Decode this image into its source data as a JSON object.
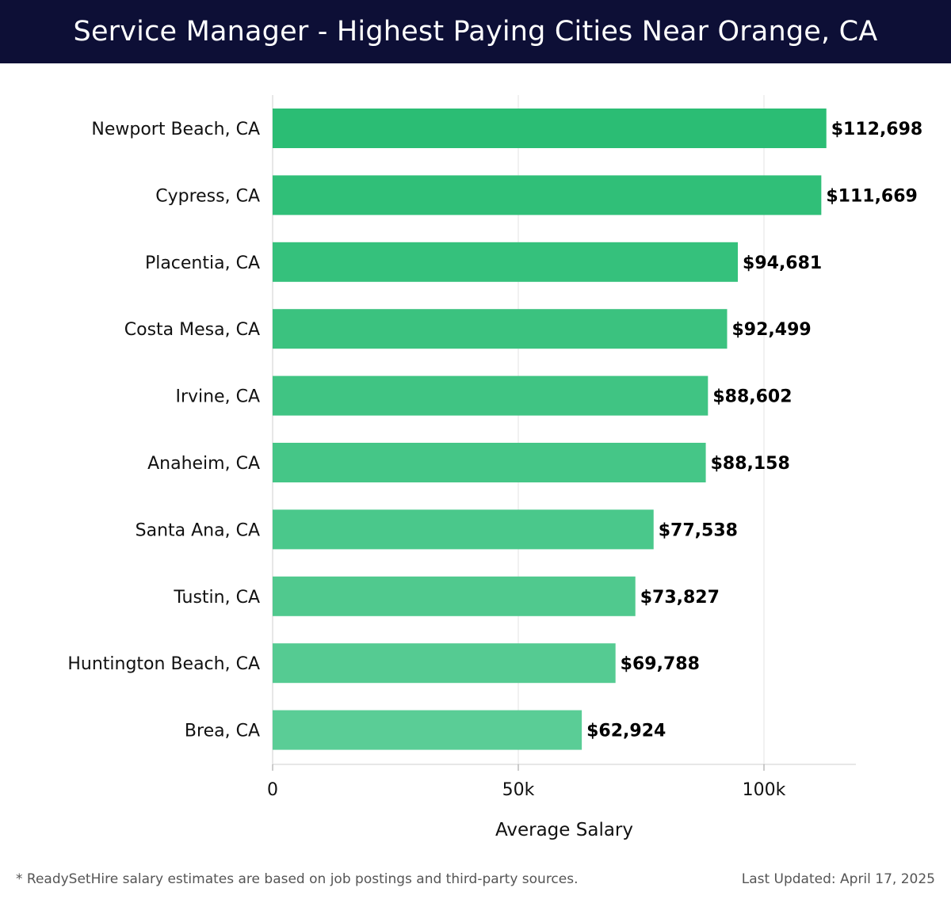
{
  "header": {
    "title": "Service Manager - Highest Paying Cities Near Orange, CA"
  },
  "chart_data": {
    "type": "bar",
    "orientation": "horizontal",
    "title": "Service Manager - Highest Paying Cities Near Orange, CA",
    "xlabel": "Average Salary",
    "ylabel": "",
    "xlim": [
      0,
      120000
    ],
    "xticks": [
      0,
      50000,
      100000
    ],
    "xtick_labels": [
      "0",
      "50k",
      "100k"
    ],
    "grid": true,
    "categories": [
      "Newport Beach, CA",
      "Cypress, CA",
      "Placentia, CA",
      "Costa Mesa, CA",
      "Irvine, CA",
      "Anaheim, CA",
      "Santa Ana, CA",
      "Tustin, CA",
      "Huntington Beach, CA",
      "Brea, CA"
    ],
    "values": [
      112698,
      111669,
      94681,
      92499,
      88602,
      88158,
      77538,
      73827,
      69788,
      62924
    ],
    "value_labels": [
      "$112,698",
      "$111,669",
      "$94,681",
      "$92,499",
      "$88,602",
      "$88,158",
      "$77,538",
      "$73,827",
      "$69,788",
      "$62,924"
    ],
    "bar_color_top": "#2bbd74",
    "bar_color_bottom": "#5acd96"
  },
  "footer": {
    "note": "* ReadySetHire salary estimates are based on job postings and third-party sources.",
    "updated": "Last Updated: April 17, 2025"
  }
}
